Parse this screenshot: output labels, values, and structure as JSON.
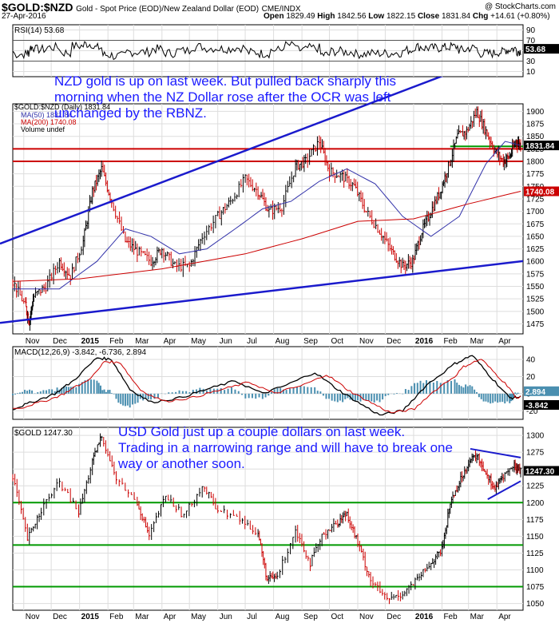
{
  "header": {
    "symbol": "$GOLD:$NZD",
    "description": "Gold - Spot Price (EOD)/New Zealand Dollar (EOD)",
    "exchange": "CME/INDX",
    "date": "27-Apr-2016",
    "site": "@ StockCharts.com",
    "ohlc_labels": [
      "Open",
      "High",
      "Low",
      "Close",
      "Chg"
    ],
    "ohlc_values": [
      "1829.49",
      "1842.56",
      "1822.15",
      "1831.84",
      "+14.61 (+0.80%)"
    ]
  },
  "annotations": {
    "nzd_note": "NZD gold is up on last week. But pulled back sharply this morning when the NZ Dollar rose after the OCR was left unchanged by the RBNZ.",
    "usd_note": "USD Gold just up a couple dollars on last week. Trading in a narrowing range and will have to break one way or another soon."
  },
  "colors": {
    "price_up": "#000000",
    "price_down": "#cc0000",
    "ma50": "#3333aa",
    "ma200": "#cc0000",
    "trendline": "#1a1acc",
    "support_red": "#cc0000",
    "support_green": "#009900",
    "macd_hist": "#4a8fb0",
    "tag_bg": "#000000"
  },
  "x_axis": {
    "months": [
      "Nov",
      "Dec",
      "2015",
      "Feb",
      "Mar",
      "Apr",
      "May",
      "Jun",
      "Jul",
      "Aug",
      "Sep",
      "Oct",
      "Nov",
      "Dec",
      "2016",
      "Feb",
      "Mar",
      "Apr"
    ],
    "start": "2014-10-20",
    "end": "2016-04-27"
  },
  "chart_data": [
    {
      "type": "line",
      "panel": "RSI",
      "title": "RSI(14) 53.68",
      "series": [
        {
          "name": "RSI(14)",
          "last": 53.68
        }
      ],
      "yticks": [
        90,
        70,
        50,
        30,
        10
      ],
      "ylim": [
        0,
        100
      ],
      "reference_lines": [
        70,
        30
      ],
      "last_label": "53.68"
    },
    {
      "type": "line",
      "panel": "price",
      "title": "$GOLD:$NZD (Daily) 1831.84",
      "legend": [
        "$GOLD:$NZD (Daily) 1831.84",
        "MA(50) 1831.84",
        "MA(200) 1740.08",
        "Volume undef"
      ],
      "yticks": [
        1475,
        1500,
        1525,
        1550,
        1575,
        1600,
        1625,
        1650,
        1675,
        1700,
        1725,
        1750,
        1775,
        1800,
        1825,
        1850,
        1875,
        1900
      ],
      "ylim": [
        1455,
        1915
      ],
      "last_labels": [
        "1831.84",
        "1740.08"
      ],
      "price_points": [
        [
          "2014-10-20",
          1560
        ],
        [
          "2014-11-03",
          1510
        ],
        [
          "2014-11-07",
          1480
        ],
        [
          "2014-11-12",
          1530
        ],
        [
          "2014-11-25",
          1550
        ],
        [
          "2014-12-10",
          1600
        ],
        [
          "2014-12-22",
          1570
        ],
        [
          "2015-01-05",
          1640
        ],
        [
          "2015-01-15",
          1740
        ],
        [
          "2015-01-25",
          1785
        ],
        [
          "2015-02-05",
          1720
        ],
        [
          "2015-02-20",
          1640
        ],
        [
          "2015-03-05",
          1620
        ],
        [
          "2015-03-20",
          1600
        ],
        [
          "2015-04-01",
          1625
        ],
        [
          "2015-04-15",
          1590
        ],
        [
          "2015-05-01",
          1590
        ],
        [
          "2015-05-15",
          1650
        ],
        [
          "2015-06-01",
          1690
        ],
        [
          "2015-06-15",
          1720
        ],
        [
          "2015-07-01",
          1765
        ],
        [
          "2015-07-15",
          1740
        ],
        [
          "2015-07-27",
          1700
        ],
        [
          "2015-08-10",
          1710
        ],
        [
          "2015-08-25",
          1790
        ],
        [
          "2015-09-05",
          1800
        ],
        [
          "2015-09-20",
          1840
        ],
        [
          "2015-10-01",
          1780
        ],
        [
          "2015-10-15",
          1770
        ],
        [
          "2015-10-28",
          1750
        ],
        [
          "2015-11-10",
          1700
        ],
        [
          "2015-11-25",
          1660
        ],
        [
          "2015-12-08",
          1620
        ],
        [
          "2015-12-20",
          1590
        ],
        [
          "2015-12-31",
          1600
        ],
        [
          "2016-01-10",
          1660
        ],
        [
          "2016-01-20",
          1700
        ],
        [
          "2016-01-30",
          1740
        ],
        [
          "2016-02-08",
          1790
        ],
        [
          "2016-02-18",
          1850
        ],
        [
          "2016-02-28",
          1860
        ],
        [
          "2016-03-10",
          1900
        ],
        [
          "2016-03-20",
          1860
        ],
        [
          "2016-03-30",
          1820
        ],
        [
          "2016-04-08",
          1800
        ],
        [
          "2016-04-15",
          1810
        ],
        [
          "2016-04-22",
          1840
        ],
        [
          "2016-04-27",
          1831.84
        ]
      ],
      "ma50_points": [
        [
          "2014-10-20",
          1545
        ],
        [
          "2014-12-10",
          1545
        ],
        [
          "2015-01-20",
          1600
        ],
        [
          "2015-02-20",
          1665
        ],
        [
          "2015-03-20",
          1650
        ],
        [
          "2015-04-20",
          1615
        ],
        [
          "2015-05-20",
          1625
        ],
        [
          "2015-06-20",
          1665
        ],
        [
          "2015-07-20",
          1705
        ],
        [
          "2015-08-20",
          1720
        ],
        [
          "2015-09-20",
          1760
        ],
        [
          "2015-10-20",
          1785
        ],
        [
          "2015-11-20",
          1755
        ],
        [
          "2015-12-20",
          1690
        ],
        [
          "2016-01-20",
          1650
        ],
        [
          "2016-02-20",
          1690
        ],
        [
          "2016-03-20",
          1795
        ],
        [
          "2016-04-10",
          1840
        ],
        [
          "2016-04-27",
          1831.84
        ]
      ],
      "ma200_points": [
        [
          "2014-10-20",
          1560
        ],
        [
          "2015-01-01",
          1565
        ],
        [
          "2015-04-01",
          1585
        ],
        [
          "2015-07-01",
          1615
        ],
        [
          "2015-09-01",
          1645
        ],
        [
          "2015-11-01",
          1680
        ],
        [
          "2016-01-01",
          1685
        ],
        [
          "2016-03-01",
          1715
        ],
        [
          "2016-04-27",
          1740.08
        ]
      ],
      "trendlines": [
        {
          "from": [
            "2014-10-20",
            1480
          ],
          "to": [
            "2016-04-27",
            1600
          ],
          "color": "trendline"
        },
        {
          "from": [
            "2014-10-20",
            1645
          ],
          "to": [
            "2016-04-27",
            2030
          ],
          "color": "trendline"
        }
      ],
      "horizontal_lines": [
        {
          "value": 1825,
          "color": "support_red"
        },
        {
          "value": 1800,
          "color": "support_red"
        },
        {
          "from": "2016-02-10",
          "value": 1830,
          "color": "support_green"
        }
      ]
    },
    {
      "type": "bar",
      "panel": "MACD",
      "title": "MACD(12,26,9) -3.842, -6.736, 2.894",
      "series": [
        {
          "name": "MACD(12,26,9)",
          "last": -3.842
        },
        {
          "name": "signal",
          "last": -6.736
        },
        {
          "name": "histogram",
          "last": 2.894
        }
      ],
      "yticks": [
        40,
        20,
        0,
        -20
      ],
      "ylim": [
        -30,
        55
      ],
      "last_labels": [
        "2.894",
        "-3.842"
      ],
      "macd_points": [
        [
          "2014-10-20",
          -18
        ],
        [
          "2014-11-10",
          -10
        ],
        [
          "2014-12-05",
          0
        ],
        [
          "2014-12-25",
          15
        ],
        [
          "2015-01-20",
          42
        ],
        [
          "2015-02-05",
          40
        ],
        [
          "2015-02-25",
          5
        ],
        [
          "2015-03-20",
          -10
        ],
        [
          "2015-04-20",
          -5
        ],
        [
          "2015-05-20",
          5
        ],
        [
          "2015-06-20",
          15
        ],
        [
          "2015-07-20",
          0
        ],
        [
          "2015-08-15",
          10
        ],
        [
          "2015-09-15",
          25
        ],
        [
          "2015-10-10",
          5
        ],
        [
          "2015-11-01",
          -10
        ],
        [
          "2015-11-25",
          -25
        ],
        [
          "2015-12-20",
          -20
        ],
        [
          "2016-01-15",
          10
        ],
        [
          "2016-02-15",
          35
        ],
        [
          "2016-03-05",
          45
        ],
        [
          "2016-03-25",
          20
        ],
        [
          "2016-04-15",
          -5
        ],
        [
          "2016-04-27",
          -3.842
        ]
      ]
    },
    {
      "type": "line",
      "panel": "USD gold",
      "title": "$GOLD 1247.30",
      "yticks": [
        1050,
        1075,
        1100,
        1125,
        1150,
        1175,
        1200,
        1225,
        1250,
        1275,
        1300
      ],
      "ylim": [
        1040,
        1312
      ],
      "last_label": "1247.30",
      "price_points": [
        [
          "2014-10-20",
          1240
        ],
        [
          "2014-11-05",
          1145
        ],
        [
          "2014-11-20",
          1190
        ],
        [
          "2014-12-10",
          1230
        ],
        [
          "2014-12-31",
          1185
        ],
        [
          "2015-01-15",
          1260
        ],
        [
          "2015-01-25",
          1300
        ],
        [
          "2015-02-10",
          1235
        ],
        [
          "2015-03-05",
          1200
        ],
        [
          "2015-03-18",
          1150
        ],
        [
          "2015-04-05",
          1210
        ],
        [
          "2015-04-25",
          1180
        ],
        [
          "2015-05-15",
          1225
        ],
        [
          "2015-06-01",
          1190
        ],
        [
          "2015-06-25",
          1175
        ],
        [
          "2015-07-15",
          1155
        ],
        [
          "2015-07-25",
          1085
        ],
        [
          "2015-08-05",
          1090
        ],
        [
          "2015-08-25",
          1160
        ],
        [
          "2015-09-10",
          1110
        ],
        [
          "2015-09-25",
          1155
        ],
        [
          "2015-10-10",
          1170
        ],
        [
          "2015-10-20",
          1185
        ],
        [
          "2015-11-01",
          1140
        ],
        [
          "2015-11-15",
          1085
        ],
        [
          "2015-12-03",
          1055
        ],
        [
          "2015-12-20",
          1065
        ],
        [
          "2016-01-05",
          1085
        ],
        [
          "2016-01-20",
          1110
        ],
        [
          "2016-02-01",
          1130
        ],
        [
          "2016-02-10",
          1200
        ],
        [
          "2016-02-20",
          1230
        ],
        [
          "2016-03-01",
          1260
        ],
        [
          "2016-03-10",
          1270
        ],
        [
          "2016-03-20",
          1245
        ],
        [
          "2016-03-30",
          1220
        ],
        [
          "2016-04-08",
          1240
        ],
        [
          "2016-04-20",
          1255
        ],
        [
          "2016-04-27",
          1247.3
        ]
      ],
      "horizontal_lines": [
        {
          "value": 1200,
          "color": "support_green"
        },
        {
          "value": 1137,
          "color": "support_green"
        },
        {
          "value": 1075,
          "color": "support_green"
        }
      ],
      "trendlines": [
        {
          "from": [
            "2016-03-03",
            1280
          ],
          "to": [
            "2016-04-27",
            1267
          ],
          "color": "trendline"
        },
        {
          "from": [
            "2016-03-22",
            1205
          ],
          "to": [
            "2016-04-27",
            1232
          ],
          "color": "trendline"
        }
      ]
    }
  ]
}
